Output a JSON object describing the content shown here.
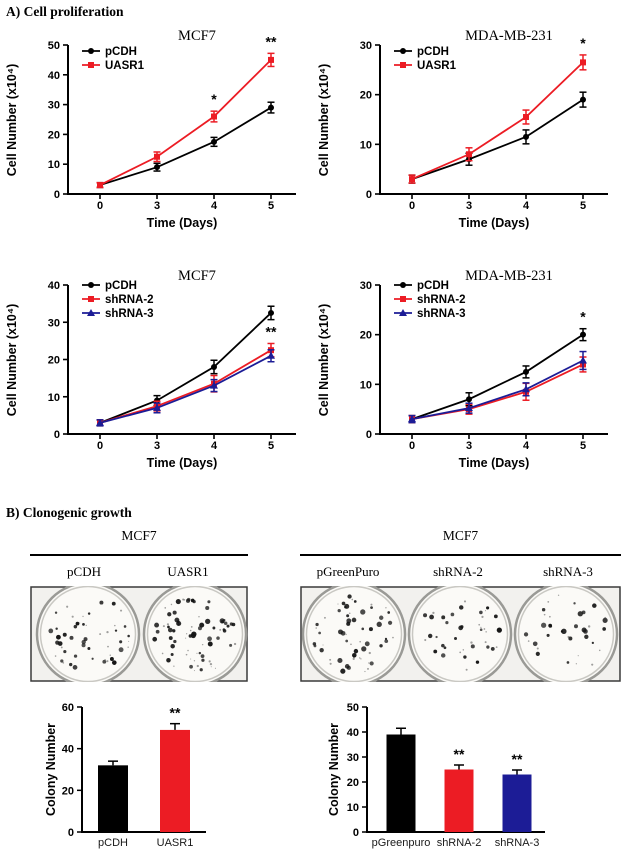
{
  "panel_a": {
    "title": "A) Cell proliferation"
  },
  "panel_b": {
    "title": "B) Clonogenic growth"
  },
  "colors": {
    "black": "#000000",
    "red": "#ec1c24",
    "navy": "#1c1c96",
    "dish_bg": "#f2f1ee",
    "dish_rim": "#9a9a96",
    "dish_border": "#3a3a3a"
  },
  "chart_data": [
    {
      "type": "line",
      "title": "MCF7",
      "xlabel": "Time (Days)",
      "ylabel": "Cell Number (x10⁴)",
      "categories": [
        "0",
        "3",
        "4",
        "5"
      ],
      "ylim": [
        0,
        50
      ],
      "yticks": [
        0,
        10,
        20,
        30,
        40,
        50
      ],
      "legend_position": "top-left-inside",
      "grid": false,
      "series": [
        {
          "name": "pCDH",
          "color": "black",
          "marker": "circle",
          "values": [
            3,
            9,
            17.5,
            29
          ],
          "errors": [
            0.8,
            1.3,
            1.5,
            1.8
          ]
        },
        {
          "name": "UASR1",
          "color": "red",
          "marker": "square",
          "values": [
            3,
            12.5,
            26,
            45
          ],
          "errors": [
            0.8,
            1.6,
            1.8,
            2.2
          ]
        }
      ],
      "annotations": [
        {
          "text": "*",
          "category": 2,
          "series": 1
        },
        {
          "text": "**",
          "category": 3,
          "series": 1
        }
      ]
    },
    {
      "type": "line",
      "title": "MDA-MB-231",
      "xlabel": "Time (Days)",
      "ylabel": "Cell Number (x10⁴)",
      "categories": [
        "0",
        "3",
        "4",
        "5"
      ],
      "ylim": [
        0,
        30
      ],
      "yticks": [
        0,
        10,
        20,
        30
      ],
      "legend_position": "top-left-inside",
      "grid": false,
      "series": [
        {
          "name": "pCDH",
          "color": "black",
          "marker": "circle",
          "values": [
            3,
            7,
            11.5,
            19
          ],
          "errors": [
            0.8,
            1.2,
            1.4,
            1.5
          ]
        },
        {
          "name": "UASR1",
          "color": "red",
          "marker": "square",
          "values": [
            3,
            8,
            15.5,
            26.5
          ],
          "errors": [
            0.8,
            1.3,
            1.4,
            1.5
          ]
        }
      ],
      "annotations": [
        {
          "text": "*",
          "category": 3,
          "series": 1
        }
      ]
    },
    {
      "type": "line",
      "title": "MCF7",
      "xlabel": "Time (Days)",
      "ylabel": "Cell Number (x10⁴)",
      "categories": [
        "0",
        "3",
        "4",
        "5"
      ],
      "ylim": [
        0,
        40
      ],
      "yticks": [
        0,
        10,
        20,
        30,
        40
      ],
      "legend_position": "top-left-inside",
      "grid": false,
      "series": [
        {
          "name": "pCDH",
          "color": "black",
          "marker": "circle",
          "values": [
            3,
            9,
            18,
            32.5
          ],
          "errors": [
            0.8,
            1.3,
            1.8,
            1.8
          ]
        },
        {
          "name": "shRNA-2",
          "color": "red",
          "marker": "square",
          "values": [
            3,
            7.5,
            13.5,
            22.5
          ],
          "errors": [
            0.8,
            1.3,
            2.2,
            1.8
          ]
        },
        {
          "name": "shRNA-3",
          "color": "navy",
          "marker": "triangle",
          "values": [
            3,
            7,
            13,
            21
          ],
          "errors": [
            0.8,
            1.3,
            1.6,
            1.6
          ]
        }
      ],
      "annotations": [
        {
          "text": "**",
          "category": 3,
          "series": 1
        }
      ]
    },
    {
      "type": "line",
      "title": "MDA-MB-231",
      "xlabel": "Time (Days)",
      "ylabel": "Cell Number (x10⁴)",
      "categories": [
        "0",
        "3",
        "4",
        "5"
      ],
      "ylim": [
        0,
        30
      ],
      "yticks": [
        0,
        10,
        20,
        30
      ],
      "legend_position": "top-left-inside",
      "grid": false,
      "series": [
        {
          "name": "pCDH",
          "color": "black",
          "marker": "circle",
          "values": [
            3,
            7,
            12.5,
            20
          ],
          "errors": [
            0.7,
            1.3,
            1.2,
            1.2
          ]
        },
        {
          "name": "shRNA-2",
          "color": "red",
          "marker": "square",
          "values": [
            3,
            5,
            8.5,
            14
          ],
          "errors": [
            0.7,
            1.0,
            1.7,
            1.5
          ]
        },
        {
          "name": "shRNA-3",
          "color": "navy",
          "marker": "triangle",
          "values": [
            3,
            5.2,
            9,
            14.8
          ],
          "errors": [
            0.7,
            1.0,
            1.3,
            1.8
          ]
        }
      ],
      "annotations": [
        {
          "text": "*",
          "category": 3,
          "series": 0
        }
      ]
    },
    {
      "type": "bar",
      "title": "",
      "xlabel": "",
      "ylabel": "Colony Number",
      "categories": [
        "pCDH",
        "UASR1"
      ],
      "values": [
        32,
        49
      ],
      "errors": [
        2,
        3
      ],
      "bar_colors": [
        "black",
        "red"
      ],
      "ylim": [
        0,
        60
      ],
      "yticks": [
        0,
        20,
        40,
        60
      ],
      "grid": false,
      "annotations": [
        {
          "text": "**",
          "category": 1
        }
      ]
    },
    {
      "type": "bar",
      "title": "",
      "xlabel": "",
      "ylabel": "Colony Number",
      "categories": [
        "pGreenpuro",
        "shRNA-2",
        "shRNA-3"
      ],
      "values": [
        39,
        25,
        23
      ],
      "errors": [
        2.5,
        1.8,
        1.8
      ],
      "bar_colors": [
        "black",
        "red",
        "navy"
      ],
      "ylim": [
        0,
        50
      ],
      "yticks": [
        0,
        10,
        20,
        30,
        40,
        50
      ],
      "grid": false,
      "annotations": [
        {
          "text": "**",
          "category": 1
        },
        {
          "text": "**",
          "category": 2
        }
      ]
    }
  ],
  "clonogenic": {
    "left": {
      "cell_line": "MCF7",
      "dishes": [
        {
          "label": "pCDH",
          "colony_count": 32
        },
        {
          "label": "UASR1",
          "colony_count": 49
        }
      ]
    },
    "right": {
      "cell_line": "MCF7",
      "dishes": [
        {
          "label": "pGreenPuro",
          "colony_count": 39
        },
        {
          "label": "shRNA-2",
          "colony_count": 25
        },
        {
          "label": "shRNA-3",
          "colony_count": 23
        }
      ]
    }
  }
}
